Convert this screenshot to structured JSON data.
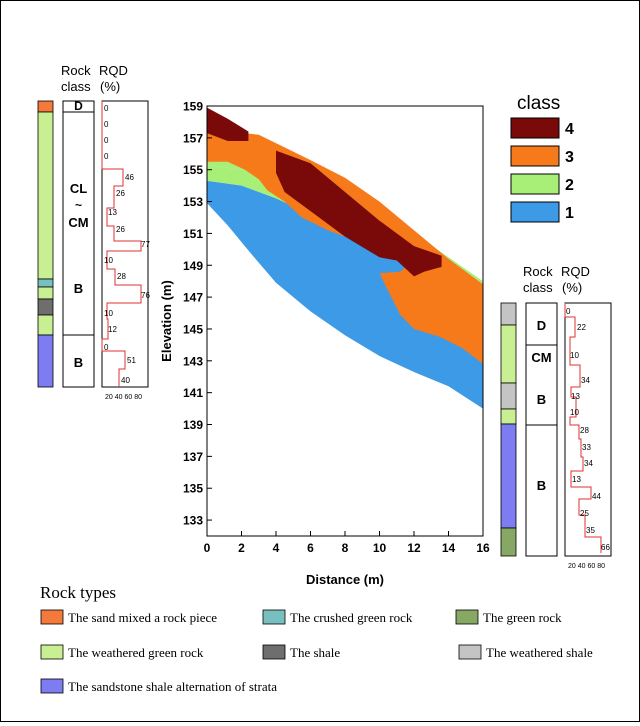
{
  "colors": {
    "class4": "#7a0a0a",
    "class3": "#f77a1a",
    "class2": "#a8ef78",
    "class1": "#3c9ae6",
    "sand_rock_piece": "#f47a3c",
    "crushed_green": "#78c0c0",
    "green_rock": "#86a864",
    "weathered_green": "#c8f092",
    "shale": "#6e6e6e",
    "weathered_shale": "#c4c4c4",
    "sandstone_shale": "#7d7cf0",
    "rqd_line": "#e03030"
  },
  "main_chart": {
    "xlabel": "Distance (m)",
    "ylabel": "Elevation (m)",
    "xticks": [
      "0",
      "2",
      "4",
      "6",
      "8",
      "10",
      "12",
      "14",
      "16"
    ],
    "yticks": [
      "159",
      "157",
      "155",
      "153",
      "151",
      "149",
      "147",
      "145",
      "143",
      "141",
      "139",
      "137",
      "135",
      "133"
    ],
    "xlim": [
      0,
      16
    ],
    "ylim": [
      132,
      159
    ],
    "legend_title": "class",
    "legend": [
      {
        "label": "4",
        "color": "#7a0a0a"
      },
      {
        "label": "3",
        "color": "#f77a1a"
      },
      {
        "label": "2",
        "color": "#a8ef78"
      },
      {
        "label": "1",
        "color": "#3c9ae6"
      }
    ],
    "zones": [
      {
        "class": "2",
        "points": [
          [
            0,
            156
          ],
          [
            1.2,
            157.4
          ],
          [
            3,
            156.6
          ],
          [
            5,
            155.6
          ],
          [
            8,
            154
          ],
          [
            10,
            152.5
          ],
          [
            12,
            151
          ],
          [
            14,
            149.5
          ],
          [
            16,
            148
          ],
          [
            16,
            147
          ],
          [
            14,
            148
          ],
          [
            12,
            149.5
          ],
          [
            10,
            150.8
          ],
          [
            8,
            152
          ],
          [
            6,
            153
          ],
          [
            4,
            154.2
          ],
          [
            2,
            155
          ],
          [
            0,
            155.3
          ]
        ]
      },
      {
        "class": "2",
        "points": [
          [
            0,
            155.3
          ],
          [
            2,
            155
          ],
          [
            4,
            154.3
          ],
          [
            6,
            153.5
          ],
          [
            8,
            152.3
          ],
          [
            10,
            151
          ],
          [
            10,
            150
          ],
          [
            8,
            151
          ],
          [
            6,
            152.2
          ],
          [
            4,
            153.2
          ],
          [
            2,
            154
          ],
          [
            0,
            154.3
          ]
        ]
      },
      {
        "class": "2",
        "points": [
          [
            0,
            154.3
          ],
          [
            1.2,
            153.6
          ],
          [
            2.5,
            152
          ],
          [
            4,
            150
          ],
          [
            6,
            148.7
          ],
          [
            8,
            147.4
          ],
          [
            8,
            146.6
          ],
          [
            6,
            147.9
          ],
          [
            4,
            149.3
          ],
          [
            2.5,
            151
          ],
          [
            1,
            152.3
          ],
          [
            0,
            152.9
          ]
        ]
      },
      {
        "class": "1",
        "points": [
          [
            0,
            154.3
          ],
          [
            2,
            154
          ],
          [
            4,
            153.2
          ],
          [
            6,
            152.2
          ],
          [
            8,
            151
          ],
          [
            10,
            150
          ],
          [
            12,
            149
          ],
          [
            14,
            148
          ],
          [
            16,
            147
          ],
          [
            16,
            140
          ],
          [
            14,
            141.4
          ],
          [
            12,
            142.3
          ],
          [
            10,
            143.3
          ],
          [
            8,
            144.6
          ],
          [
            6,
            146.1
          ],
          [
            4,
            147.9
          ],
          [
            2.5,
            149.8
          ],
          [
            1.2,
            151.5
          ],
          [
            0,
            152.9
          ]
        ]
      },
      {
        "class": "3",
        "points": [
          [
            0,
            157.3
          ],
          [
            1.2,
            157.4
          ],
          [
            3,
            157.2
          ],
          [
            4.5,
            156.4
          ],
          [
            6,
            155.6
          ],
          [
            8,
            154.5
          ],
          [
            10,
            153
          ],
          [
            12,
            151.2
          ],
          [
            14,
            149.4
          ],
          [
            16,
            147.8
          ],
          [
            16,
            142.8
          ],
          [
            14.8,
            143.8
          ],
          [
            13.5,
            144.5
          ],
          [
            12,
            145
          ],
          [
            11.2,
            145.9
          ],
          [
            10.5,
            147.4
          ],
          [
            10,
            148.5
          ],
          [
            11.2,
            148.6
          ],
          [
            12,
            149.3
          ],
          [
            10.3,
            150.3
          ],
          [
            8.5,
            150.6
          ],
          [
            7,
            151.2
          ],
          [
            5.5,
            152
          ],
          [
            4.5,
            153
          ],
          [
            3.5,
            153.7
          ],
          [
            3,
            154.4
          ],
          [
            2.2,
            155
          ],
          [
            1.2,
            155.5
          ],
          [
            0,
            155.5
          ]
        ]
      },
      {
        "class": "4",
        "points": [
          [
            0,
            158.9
          ],
          [
            1.2,
            158.2
          ],
          [
            2.4,
            157.4
          ],
          [
            2.4,
            156.8
          ],
          [
            1.2,
            156.8
          ],
          [
            0,
            157.3
          ]
        ]
      },
      {
        "class": "4",
        "points": [
          [
            4,
            156.2
          ],
          [
            6,
            155.4
          ],
          [
            8,
            153.6
          ],
          [
            10,
            151.8
          ],
          [
            12,
            150.2
          ],
          [
            13.6,
            149.6
          ],
          [
            13.6,
            148.9
          ],
          [
            12.6,
            148.6
          ],
          [
            12,
            148.3
          ],
          [
            11,
            149.3
          ],
          [
            10,
            149.5
          ],
          [
            8,
            150.8
          ],
          [
            6,
            152.4
          ],
          [
            4.5,
            153.6
          ],
          [
            4,
            154.8
          ]
        ]
      }
    ]
  },
  "left_log": {
    "rock_header": "Rock",
    "rock_header2": "class",
    "rqd_header": "RQD",
    "rqd_unit": "(%)",
    "classes": [
      {
        "label": "D"
      },
      {
        "label": "CL\n~\nCM"
      },
      {
        "label": "B"
      },
      {
        "label": "B"
      }
    ],
    "rqd_values": [
      "0",
      "0",
      "0",
      "0",
      "46",
      "26",
      "13",
      "26",
      "77",
      "10",
      "28",
      "76",
      "10",
      "12",
      "0",
      "51",
      "40"
    ],
    "rqd_axis": "20 40 60 80"
  },
  "right_log": {
    "rock_header": "Rock",
    "rock_header2": "class",
    "rqd_header": "RQD",
    "rqd_unit": "(%)",
    "classes": [
      {
        "label": "D"
      },
      {
        "label": "CM"
      },
      {
        "label": "B"
      },
      {
        "label": "B"
      }
    ],
    "rqd_values": [
      "0",
      "22",
      "10",
      "34",
      "13",
      "10",
      "28",
      "33",
      "34",
      "13",
      "44",
      "25",
      "35",
      "66"
    ],
    "rqd_axis": "20 40 60 80"
  },
  "rock_types": {
    "title": "Rock types",
    "items": [
      {
        "label": "The sand mixed a rock piece",
        "color": "#f47a3c"
      },
      {
        "label": "The crushed green rock",
        "color": "#78c0c0"
      },
      {
        "label": "The green rock",
        "color": "#86a864"
      },
      {
        "label": "The weathered green rock",
        "color": "#c8f092"
      },
      {
        "label": "The shale",
        "color": "#6e6e6e"
      },
      {
        "label": "The weathered shale",
        "color": "#c4c4c4"
      },
      {
        "label": "The sandstone shale alternation of strata",
        "color": "#7d7cf0"
      }
    ]
  }
}
